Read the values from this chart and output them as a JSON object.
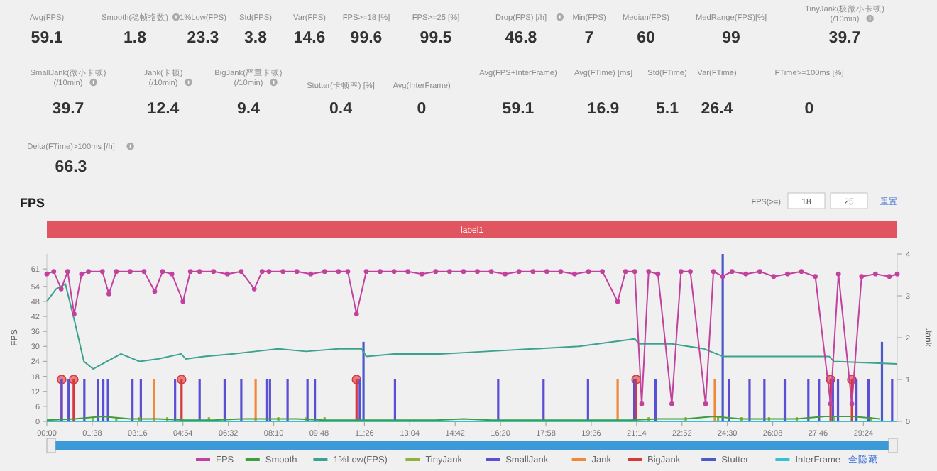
{
  "chart_data": [
    {
      "type": "other",
      "data_labels": true,
      "categories": [
        "Avg(FPS)",
        "Smooth(稳帧指数)",
        "1%Low(FPS)",
        "Std(FPS)",
        "Var(FPS)",
        "FPS>=18 [%]",
        "FPS>=25 [%]",
        "Drop(FPS) [/h]",
        "Min(FPS)",
        "Median(FPS)",
        "MedRange(FPS)[%]",
        "TinyJank(极微小卡顿)\n(/10min)",
        "SmallJank(微小卡顿)\n(/10min)",
        "Jank(卡顿)\n(/10min)",
        "BigJank(严重卡顿)\n(/10min)",
        "Stutter(卡顿率) [%]",
        "Avg(InterFrame)",
        "Avg(FPS+InterFrame)",
        "Avg(FTime) [ms]",
        "Std(FTime)",
        "Var(FTime)",
        "FTime>=100ms [%]",
        "Delta(FTime)>100ms [/h]"
      ],
      "values": [
        59.1,
        1.8,
        23.3,
        3.8,
        14.6,
        99.6,
        99.5,
        46.8,
        7,
        60,
        99,
        39.7,
        39.7,
        12.4,
        9.4,
        0.4,
        0,
        59.1,
        16.9,
        5.1,
        26.4,
        0,
        66.3
      ]
    },
    {
      "type": "line",
      "title": "FPS",
      "ylabel": "FPS",
      "y2label": "Jank",
      "legend": "bottom",
      "annotations": [
        "FPS(>=)",
        "18",
        "25",
        "重置",
        "全隐藏",
        "label1"
      ],
      "xlim": [
        0,
        1837
      ],
      "xticks": [
        {
          "value": 0,
          "label": "00:00"
        },
        {
          "value": 98,
          "label": "01:38"
        },
        {
          "value": 196,
          "label": "03:16"
        },
        {
          "value": 294,
          "label": "04:54"
        },
        {
          "value": 392,
          "label": "06:32"
        },
        {
          "value": 490,
          "label": "08:10"
        },
        {
          "value": 588,
          "label": "09:48"
        },
        {
          "value": 686,
          "label": "11:26"
        },
        {
          "value": 784,
          "label": "13:04"
        },
        {
          "value": 882,
          "label": "14:42"
        },
        {
          "value": 980,
          "label": "16:20"
        },
        {
          "value": 1078,
          "label": "17:58"
        },
        {
          "value": 1176,
          "label": "19:36"
        },
        {
          "value": 1274,
          "label": "21:14"
        },
        {
          "value": 1372,
          "label": "22:52"
        },
        {
          "value": 1470,
          "label": "24:30"
        },
        {
          "value": 1568,
          "label": "26:08"
        },
        {
          "value": 1666,
          "label": "27:46"
        },
        {
          "value": 1764,
          "label": "29:24"
        }
      ],
      "ylim": [
        0,
        67
      ],
      "yticks": [
        0,
        6,
        12,
        18,
        24,
        30,
        36,
        42,
        48,
        54,
        61
      ],
      "y2lim": [
        0,
        4
      ],
      "y2ticks": [
        0,
        1,
        2,
        3,
        4
      ],
      "series": [
        {
          "name": "FPS",
          "color": "#c2419e",
          "type": "line",
          "marker": "circle",
          "x": [
            0,
            15,
            31,
            45,
            59,
            75,
            90,
            120,
            134,
            150,
            180,
            210,
            233,
            250,
            270,
            294,
            310,
            330,
            360,
            390,
            420,
            448,
            465,
            480,
            510,
            540,
            570,
            600,
            630,
            650,
            669,
            690,
            720,
            750,
            780,
            810,
            840,
            870,
            900,
            930,
            960,
            990,
            1020,
            1050,
            1080,
            1110,
            1140,
            1170,
            1200,
            1233,
            1250,
            1270,
            1285,
            1300,
            1320,
            1350,
            1370,
            1390,
            1423,
            1440,
            1460,
            1480,
            1510,
            1540,
            1570,
            1600,
            1630,
            1660,
            1693,
            1710,
            1739,
            1760,
            1790,
            1820,
            1837
          ],
          "values": [
            59,
            60,
            53,
            60,
            43,
            59,
            60,
            60,
            51,
            60,
            60,
            60,
            52,
            60,
            59,
            48,
            60,
            60,
            60,
            59,
            60,
            53,
            60,
            60,
            60,
            60,
            59,
            60,
            60,
            60,
            43,
            60,
            60,
            60,
            60,
            59,
            60,
            60,
            60,
            60,
            60,
            59,
            60,
            60,
            60,
            60,
            59,
            60,
            60,
            48,
            60,
            60,
            7,
            60,
            59,
            7,
            60,
            60,
            7,
            60,
            58,
            60,
            59,
            60,
            58,
            59,
            60,
            58,
            7,
            59,
            7,
            58,
            59,
            58,
            59
          ]
        },
        {
          "name": "Smooth",
          "color": "#3f9c3f",
          "type": "line",
          "x": [
            0,
            60,
            120,
            180,
            240,
            300,
            360,
            420,
            480,
            540,
            600,
            660,
            720,
            780,
            840,
            900,
            960,
            1020,
            1080,
            1140,
            1200,
            1260,
            1320,
            1380,
            1440,
            1500,
            1560,
            1620,
            1680,
            1740,
            1800
          ],
          "values": [
            0.5,
            1,
            2,
            1,
            1,
            0.5,
            0.5,
            1,
            1,
            1,
            0.5,
            0.5,
            0.5,
            0.5,
            0.5,
            1,
            0.5,
            0.5,
            0.5,
            0.5,
            0.5,
            0.5,
            1,
            1,
            2,
            1,
            1,
            1,
            2,
            2,
            1
          ]
        },
        {
          "name": "1%Low(FPS)",
          "color": "#3aa28e",
          "type": "line",
          "x": [
            0,
            20,
            40,
            60,
            80,
            100,
            130,
            160,
            200,
            240,
            290,
            300,
            340,
            400,
            450,
            500,
            560,
            630,
            680,
            690,
            750,
            850,
            950,
            1050,
            1150,
            1270,
            1280,
            1350,
            1420,
            1460,
            1500,
            1600,
            1690,
            1700,
            1837
          ],
          "values": [
            48,
            53,
            55,
            40,
            24,
            21,
            24,
            27,
            24,
            25,
            27,
            25,
            26,
            27,
            28,
            29,
            28,
            29,
            29,
            26,
            27,
            27,
            28,
            29,
            30,
            33,
            31,
            31,
            29,
            26,
            26,
            26,
            26,
            24,
            23
          ]
        },
        {
          "name": "TinyJank",
          "color": "#8fb23a",
          "type": "bar",
          "axis": "y2",
          "x": [
            100,
            150,
            200,
            260,
            350,
            500,
            560,
            600,
            1300,
            1380,
            1450,
            1500,
            1560,
            1620,
            1700,
            1780
          ],
          "values": [
            0.1,
            0.1,
            0.1,
            0.1,
            0.1,
            0.1,
            0.1,
            0.1,
            0.1,
            0.1,
            0.1,
            0.1,
            0.1,
            0.1,
            0.1,
            0.1
          ]
        },
        {
          "name": "SmallJank",
          "color": "#5b4fd6",
          "type": "bar",
          "axis": "y2",
          "x": [
            32,
            47,
            81,
            111,
            122,
            132,
            185,
            203,
            277,
            330,
            384,
            420,
            476,
            482,
            520,
            563,
            579,
            676,
            752,
            975,
            1073,
            1169,
            1269,
            1315,
            1473,
            1518,
            1550,
            1594,
            1645,
            1668,
            1698,
            1709,
            1749,
            1775,
            1826
          ],
          "values": [
            1,
            1,
            1,
            1,
            1,
            1,
            1,
            1,
            1,
            1,
            1,
            1,
            1,
            1,
            1,
            1,
            1,
            1,
            1,
            1,
            1,
            1,
            1,
            1,
            1,
            1,
            1,
            1,
            1,
            1,
            1,
            1,
            1,
            1,
            1
          ]
        },
        {
          "name": "Jank",
          "color": "#f0883a",
          "type": "bar",
          "axis": "y2",
          "x": [
            231,
            451,
            1233,
            1443
          ],
          "values": [
            1,
            1,
            1,
            1
          ]
        },
        {
          "name": "BigJank",
          "color": "#d9383a",
          "type": "lollipop",
          "axis": "y2",
          "x": [
            32,
            58,
            291,
            669,
            1273,
            1693,
            1739
          ],
          "values": [
            1,
            1,
            1,
            1,
            1,
            1,
            1
          ]
        },
        {
          "name": "Stutter",
          "color": "#4c5ac9",
          "type": "bar",
          "axis": "y2",
          "x": [
            684,
            1460,
            1804
          ],
          "values": [
            1.9,
            4,
            1.9
          ]
        },
        {
          "name": "InterFrame",
          "color": "#36c0d0",
          "type": "line",
          "x": [
            0,
            1837
          ],
          "values": [
            0,
            0
          ]
        }
      ]
    }
  ]
}
